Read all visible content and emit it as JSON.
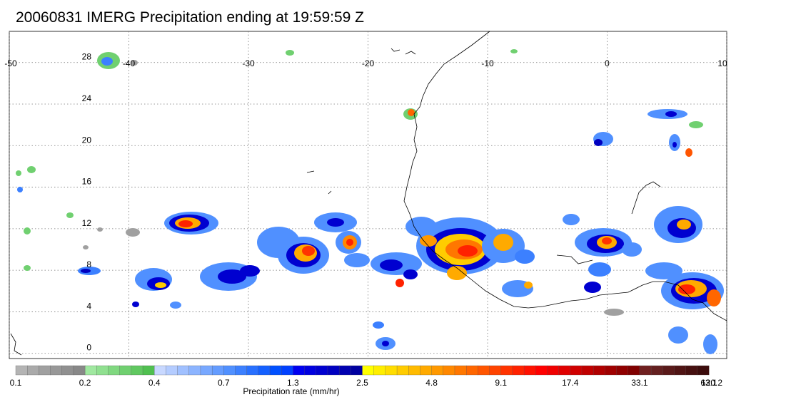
{
  "title": "20060831 IMERG Precipitation ending at 19:59:59 Z",
  "map": {
    "lon_range": [
      -50,
      10
    ],
    "lat_range": [
      -0.5,
      31
    ],
    "lon_ticks": [
      "-50",
      "-40",
      "-30",
      "-20",
      "-10",
      "0",
      "10"
    ],
    "lat_ticks": [
      "28",
      "24",
      "20",
      "16",
      "12",
      "8",
      "4",
      "0"
    ],
    "lon_tick_values": [
      -50,
      -40,
      -30,
      -20,
      -10,
      0,
      10
    ],
    "lat_tick_values": [
      28,
      24,
      20,
      16,
      12,
      8,
      4,
      0
    ],
    "grid": "dotted"
  },
  "colorbar": {
    "label": "Precipitation rate (mm/hr)",
    "tick_labels": [
      "0.1",
      "0.2",
      "0.4",
      "0.7",
      "1.3",
      "2.5",
      "4.8",
      "9.1",
      "17.4",
      "33.1",
      "63.1",
      "120.2"
    ],
    "segments_per_tick": 6,
    "colors": [
      "#b4b4b4",
      "#aaaaaa",
      "#a0a0a0",
      "#989898",
      "#909090",
      "#888888",
      "#a0e8a0",
      "#90e090",
      "#80d880",
      "#70d070",
      "#60c860",
      "#50c050",
      "#c8d8ff",
      "#b4ccff",
      "#a0c0ff",
      "#8cb4ff",
      "#78a8ff",
      "#649cff",
      "#5090ff",
      "#3c80ff",
      "#2870ff",
      "#1460ff",
      "#0050ff",
      "#0040ff",
      "#0000f0",
      "#0000e0",
      "#0000d0",
      "#0000c0",
      "#0000b0",
      "#0000a0",
      "#ffff00",
      "#ffee00",
      "#ffdd00",
      "#ffcc00",
      "#ffbb00",
      "#ffaa00",
      "#ff9900",
      "#ff8800",
      "#ff7700",
      "#ff6600",
      "#ff5500",
      "#ff4400",
      "#ff3300",
      "#ff2200",
      "#ff1100",
      "#ff0000",
      "#f00000",
      "#e00000",
      "#d00000",
      "#c00000",
      "#b00000",
      "#a00000",
      "#900000",
      "#800000",
      "#702020",
      "#642020",
      "#5a1a1a",
      "#501414",
      "#461010",
      "#3c0c0c"
    ]
  }
}
